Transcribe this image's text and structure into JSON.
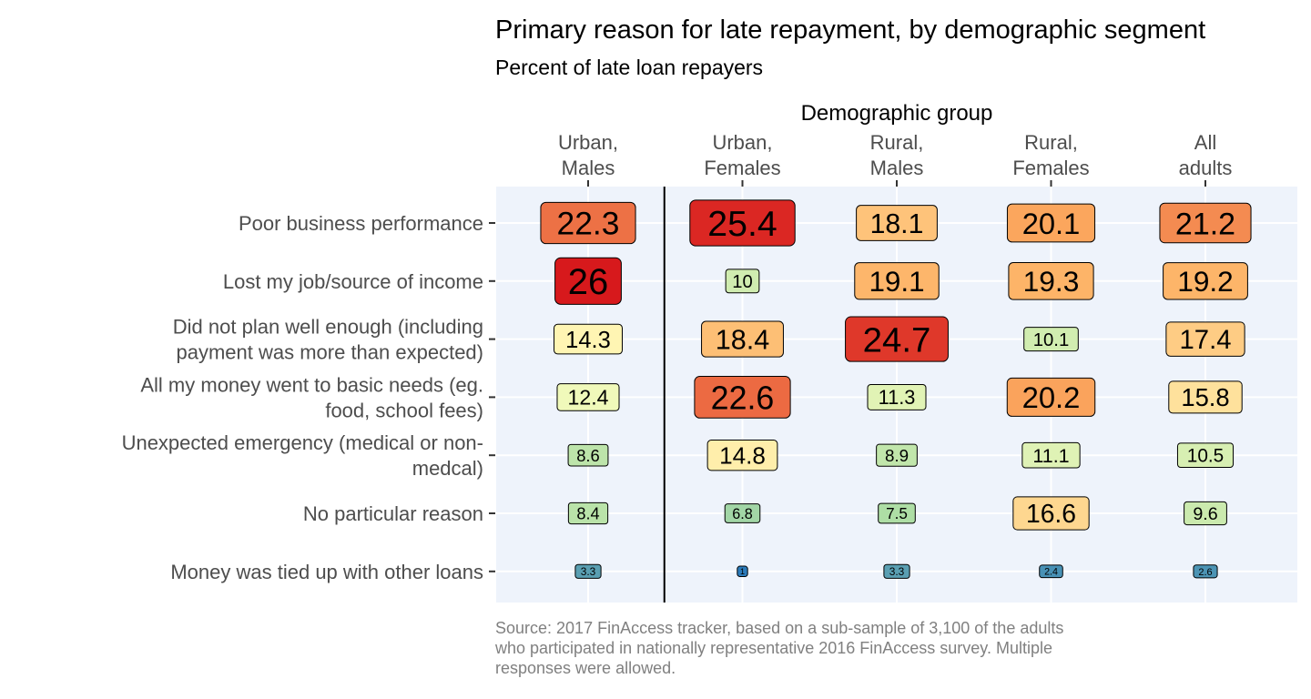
{
  "chart_data": {
    "type": "heatmap",
    "title": "Primary reason for late repayment, by demographic segment",
    "subtitle": "Percent of late loan repayers",
    "x_axis_title": "Demographic group",
    "x_axis_position": "top",
    "columns": [
      {
        "label": [
          "Urban,",
          "Males"
        ]
      },
      {
        "label": [
          "Urban,",
          "Females"
        ]
      },
      {
        "label": [
          "Rural,",
          "Males"
        ]
      },
      {
        "label": [
          "Rural,",
          "Females"
        ]
      },
      {
        "label": [
          "All",
          "adults"
        ]
      }
    ],
    "rows": [
      {
        "label": [
          "Poor business performance"
        ],
        "values": [
          22.3,
          25.4,
          18.1,
          20.1,
          21.2
        ]
      },
      {
        "label": [
          "Lost my job/source of income"
        ],
        "values": [
          26,
          10,
          19.1,
          19.3,
          19.2
        ]
      },
      {
        "label": [
          "Did not plan well enough (including",
          "payment was more than expected)"
        ],
        "values": [
          14.3,
          18.4,
          24.7,
          10.1,
          17.4
        ]
      },
      {
        "label": [
          "All my money went to basic needs (eg.",
          "food, school fees)"
        ],
        "values": [
          12.4,
          22.6,
          11.3,
          20.2,
          15.8
        ]
      },
      {
        "label": [
          "Unexpected emergency (medical or non-",
          "medcal)"
        ],
        "values": [
          8.6,
          14.8,
          8.9,
          11.1,
          10.5
        ]
      },
      {
        "label": [
          "No particular reason"
        ],
        "values": [
          8.4,
          6.8,
          7.5,
          16.6,
          9.6
        ]
      },
      {
        "label": [
          "Money was tied up with other loans"
        ],
        "values": [
          3.3,
          1,
          3.3,
          2.4,
          2.6
        ]
      }
    ],
    "value_range": [
      1,
      26
    ],
    "color_scale": [
      "#2b7bba",
      "#abdda4",
      "#ffffbf",
      "#fdae61",
      "#d7191c"
    ],
    "panel_background": "#eef3fb",
    "grid": true,
    "legend": "none",
    "caption": [
      "Source: 2017 FinAccess tracker, based on a sub-sample of 3,100 of the adults",
      "who participated in nationally representative 2016 FinAccess survey. Multiple",
      "responses were allowed."
    ]
  }
}
